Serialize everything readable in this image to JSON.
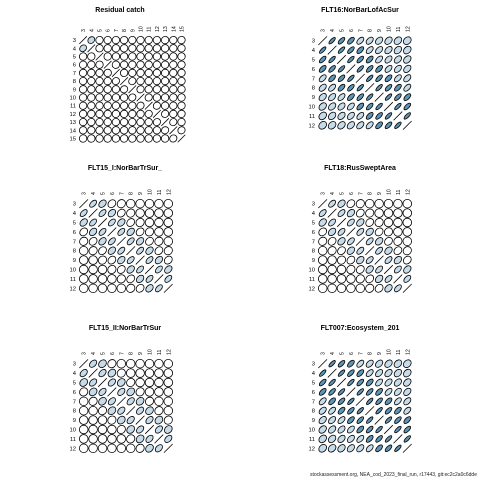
{
  "footer": "stockassessment.org, NEA_cod_2023_final_run, r17443, git:ec2c2a0c6dde",
  "colors": {
    "stroke": "#000000",
    "fill_strong": "#5e94b6",
    "fill_light": "#c6dcea",
    "fill_none": "#ffffff"
  },
  "chart_data": [
    {
      "type": "correlation-matrix",
      "title": "Residual catch",
      "ages": [
        "3",
        "4",
        "5",
        "6",
        "7",
        "8",
        "9",
        "10",
        "11",
        "12",
        "13",
        "14",
        "15"
      ],
      "pattern": "residual",
      "position": "top-left"
    },
    {
      "type": "correlation-matrix",
      "title": "FLT16:NorBarLofAcSur",
      "ages": [
        "3",
        "4",
        "5",
        "6",
        "7",
        "8",
        "9",
        "10",
        "11",
        "12"
      ],
      "pattern": "survey-strong",
      "position": "top-right"
    },
    {
      "type": "correlation-matrix",
      "title": "FLT15_I:NorBarTrSur_",
      "ages": [
        "3",
        "4",
        "5",
        "6",
        "7",
        "8",
        "9",
        "10",
        "11",
        "12"
      ],
      "pattern": "survey-medium",
      "position": "middle-left"
    },
    {
      "type": "correlation-matrix",
      "title": "FLT18:RusSweptArea",
      "ages": [
        "3",
        "4",
        "5",
        "6",
        "7",
        "8",
        "9",
        "10",
        "11",
        "12"
      ],
      "pattern": "survey-medium",
      "position": "middle-right"
    },
    {
      "type": "correlation-matrix",
      "title": "FLT15_II:NorBarTrSur",
      "ages": [
        "3",
        "4",
        "5",
        "6",
        "7",
        "8",
        "9",
        "10",
        "11",
        "12"
      ],
      "pattern": "survey-light",
      "position": "bottom-left"
    },
    {
      "type": "correlation-matrix",
      "title": "FLT007:Ecosystem_201",
      "ages": [
        "3",
        "4",
        "5",
        "6",
        "7",
        "8",
        "9",
        "10",
        "11",
        "12"
      ],
      "pattern": "survey-strong",
      "position": "bottom-right"
    }
  ]
}
